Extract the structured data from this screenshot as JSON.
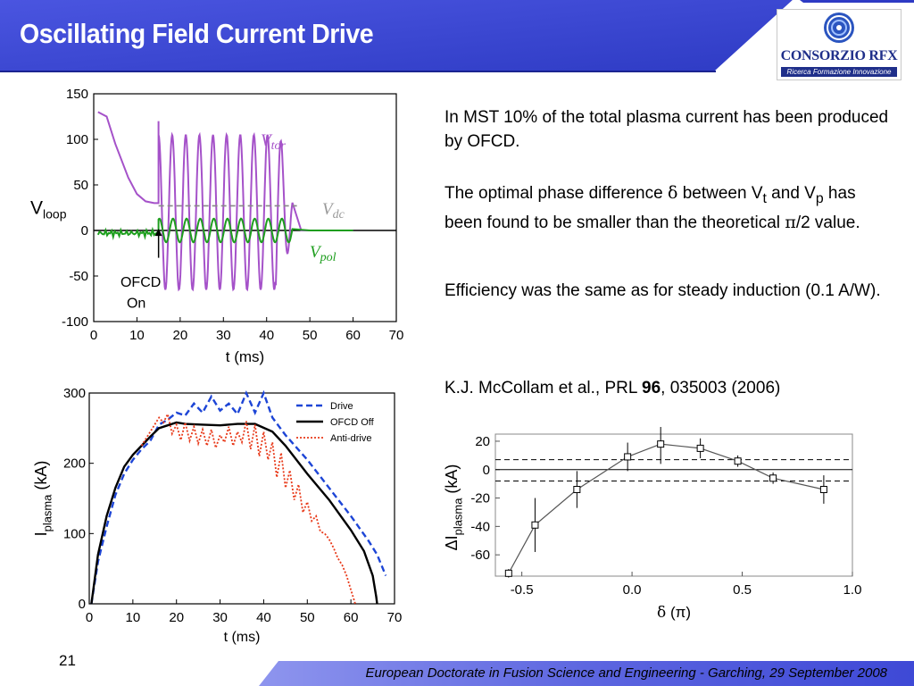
{
  "slide": {
    "title": "Oscillating Field Current Drive",
    "number": "21",
    "footer": "European Doctorate in Fusion Science and Engineering  -  Garching, 29 September 2008"
  },
  "logo": {
    "name": "CONSORZIO RFX",
    "tagline": "Ricerca Formazione Innovazione",
    "colors": {
      "primary": "#1f2f8a",
      "accent": "#2b55c0"
    }
  },
  "text": {
    "p1": "In MST 10% of the total plasma current has been produced by OFCD.",
    "p2_a": "The optimal phase difference ",
    "p2_delta": "δ",
    "p2_b": " between V",
    "p2_t": "t",
    "p2_c": " and V",
    "p2_p": "p",
    "p2_d": " has been found to be smaller than the theoretical ",
    "p2_pi": "π",
    "p2_e": "/2 value.",
    "p3": "Efficiency was the same as for steady induction (0.1 A/W).",
    "ref_a": "K.J. McCollam et al., PRL ",
    "ref_bold": "96",
    "ref_b": ", 035003 (2006)"
  },
  "colors": {
    "title_bar": "#3e49d6",
    "title_bar_dark": "#2330b0",
    "vtor": "#a552c9",
    "vpol": "#1e9e1e",
    "drive": "#1d45d6",
    "ofcd_off": "#000000",
    "antidrive": "#e83a1a"
  },
  "chart_data": [
    {
      "type": "line",
      "xlabel": "t (ms)",
      "ylabel_main": "V",
      "ylabel_sub": "loop",
      "xlim": [
        0,
        70
      ],
      "ylim": [
        -100,
        150
      ],
      "xticks": [
        0,
        10,
        20,
        30,
        40,
        50,
        60,
        70
      ],
      "yticks": [
        -100,
        -50,
        0,
        50,
        100,
        150
      ],
      "series": [
        {
          "name": "V",
          "sub": "tor",
          "pre_x": [
            1,
            3,
            5,
            8,
            10,
            12,
            14,
            15
          ],
          "pre_y": [
            130,
            125,
            95,
            58,
            40,
            32,
            30,
            30
          ],
          "osc_start": 15,
          "osc_end": 46,
          "period": 3.15,
          "amplitude": 85,
          "tail_x": [
            48,
            50,
            55,
            60
          ],
          "tail_y": [
            0,
            0,
            0,
            0
          ]
        },
        {
          "name": "V",
          "sub": "dc",
          "x": [
            15,
            47
          ],
          "y": [
            27,
            27
          ]
        },
        {
          "name": "V",
          "sub": "pol",
          "noise_x": [
            1,
            15
          ],
          "osc_start": 15,
          "osc_end": 46,
          "period": 3.15,
          "amplitude": 13
        }
      ],
      "annotations": {
        "line1": "OFCD",
        "line2": "On",
        "at_x": 15
      }
    },
    {
      "type": "line",
      "xlabel": "t (ms)",
      "ylabel_main": "I",
      "ylabel_sub": "plasma",
      "ylabel_unit": " (kA)",
      "xlim": [
        0,
        70
      ],
      "ylim": [
        0,
        300
      ],
      "xticks": [
        0,
        10,
        20,
        30,
        40,
        50,
        60,
        70
      ],
      "yticks": [
        0,
        100,
        200,
        300
      ],
      "legend": {
        "position": "top-right"
      },
      "series": [
        {
          "name": "Drive",
          "x": [
            0.5,
            2,
            4,
            6,
            8,
            10,
            12,
            14,
            16,
            18,
            20,
            22,
            24,
            26,
            28,
            30,
            32,
            34,
            36,
            38,
            40,
            42,
            45,
            50,
            55,
            60,
            64,
            66,
            68
          ],
          "y": [
            0,
            60,
            110,
            155,
            185,
            205,
            220,
            232,
            255,
            262,
            272,
            268,
            285,
            272,
            295,
            275,
            285,
            270,
            300,
            272,
            300,
            265,
            240,
            205,
            165,
            125,
            90,
            70,
            40
          ]
        },
        {
          "name": "OFCD Off",
          "x": [
            0.5,
            2,
            4,
            6,
            8,
            10,
            12,
            14,
            16,
            18,
            20,
            22,
            26,
            30,
            34,
            38,
            42,
            45,
            50,
            55,
            60,
            63,
            65,
            65.8,
            66
          ],
          "y": [
            0,
            70,
            125,
            165,
            195,
            212,
            225,
            238,
            250,
            254,
            258,
            256,
            255,
            254,
            256,
            256,
            245,
            225,
            185,
            148,
            105,
            75,
            40,
            10,
            0
          ]
        },
        {
          "name": "Anti-drive",
          "x": [
            12,
            14,
            16,
            17,
            18,
            19,
            20,
            21,
            22,
            23,
            24,
            25,
            26,
            27,
            28,
            29,
            30,
            31,
            32,
            33,
            34,
            35,
            36,
            37,
            38,
            39,
            40,
            41,
            42,
            43,
            44,
            45,
            46,
            47,
            48,
            49,
            50,
            51,
            52,
            53,
            54,
            55,
            56,
            57,
            58,
            59,
            60,
            61
          ],
          "y": [
            225,
            245,
            265,
            258,
            270,
            242,
            255,
            233,
            258,
            232,
            252,
            228,
            248,
            225,
            248,
            222,
            240,
            230,
            252,
            225,
            245,
            230,
            260,
            220,
            255,
            210,
            245,
            205,
            230,
            180,
            215,
            165,
            190,
            148,
            170,
            130,
            145,
            118,
            125,
            103,
            100,
            92,
            80,
            65,
            55,
            40,
            20,
            0
          ]
        }
      ]
    },
    {
      "type": "scatter",
      "xlabel_main": "δ",
      "xlabel_rest": " (π)",
      "ylabel_pre": "Δ",
      "ylabel_main": "I",
      "ylabel_sub": "plasma",
      "ylabel_unit": " (kA)",
      "xlim": [
        -0.62,
        1.0
      ],
      "ylim": [
        -75,
        25
      ],
      "xticks": [
        -0.5,
        0.0,
        0.5,
        1.0
      ],
      "xtick_labels": [
        "-0.5",
        "0.0",
        "0.5",
        "1.0"
      ],
      "yticks": [
        -60,
        -40,
        -20,
        0,
        20
      ],
      "points": [
        {
          "x": -0.56,
          "y": -73,
          "err": 3
        },
        {
          "x": -0.44,
          "y": -39,
          "err": 19
        },
        {
          "x": -0.25,
          "y": -14,
          "err": 13
        },
        {
          "x": -0.02,
          "y": 9,
          "err": 10
        },
        {
          "x": 0.13,
          "y": 18,
          "err": 14
        },
        {
          "x": 0.31,
          "y": 15,
          "err": 7
        },
        {
          "x": 0.48,
          "y": 6,
          "err": 4
        },
        {
          "x": 0.64,
          "y": -6,
          "err": 4
        },
        {
          "x": 0.87,
          "y": -14,
          "err": 10
        }
      ],
      "reference_lines": [
        7,
        0,
        -8
      ]
    }
  ]
}
